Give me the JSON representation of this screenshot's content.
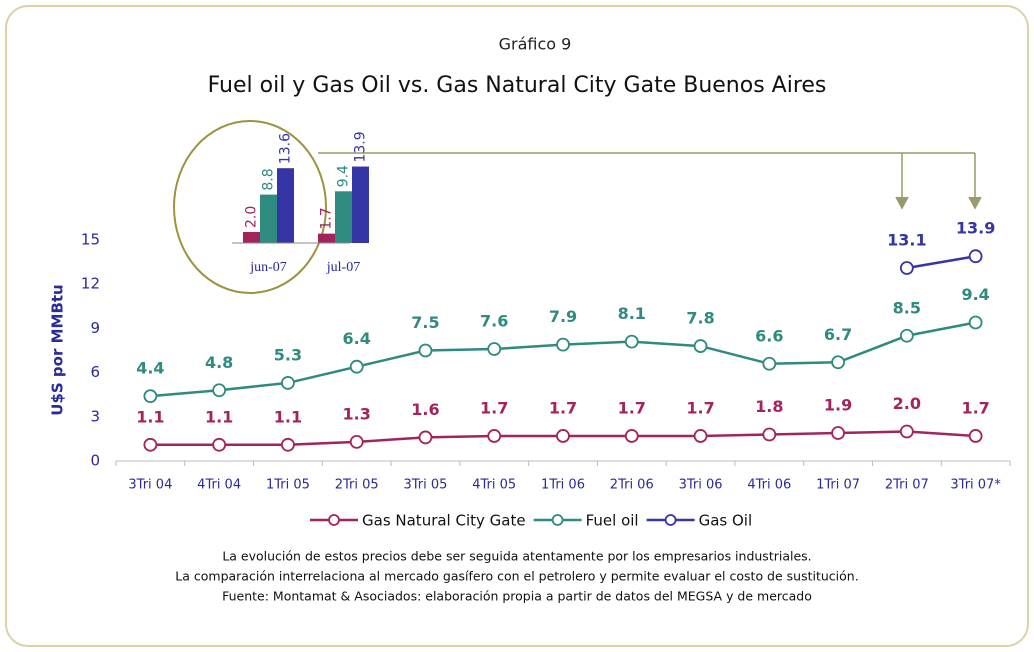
{
  "chart_data": [
    {
      "type": "line",
      "label": "Gráfico 9",
      "title": "Fuel oil y Gas Oil vs. Gas Natural City Gate Buenos Aires",
      "ylabel": "U$S por MMBtu",
      "categories": [
        "3Tri 04",
        "4Tri 04",
        "1Tri 05",
        "2Tri 05",
        "3Tri 05",
        "4Tri 05",
        "1Tri 06",
        "2Tri 06",
        "3Tri 06",
        "4Tri 06",
        "1Tri 07",
        "2Tri 07",
        "3Tri 07*"
      ],
      "series": [
        {
          "name": "Gas Natural City Gate",
          "color": "#a3245c",
          "values": [
            1.1,
            1.1,
            1.1,
            1.3,
            1.6,
            1.7,
            1.7,
            1.7,
            1.7,
            1.8,
            1.9,
            2.0,
            1.7
          ],
          "value_labels": [
            "1.1",
            "1.1",
            "1.1",
            "1.3",
            "1.6",
            "1.7",
            "1.7",
            "1.7",
            "1.7",
            "1.8",
            "1.9",
            "2.0",
            "1.7"
          ]
        },
        {
          "name": "Fuel oil",
          "color": "#2f8a80",
          "values": [
            4.4,
            4.8,
            5.3,
            6.4,
            7.5,
            7.6,
            7.9,
            8.1,
            7.8,
            6.6,
            6.7,
            8.5,
            9.4
          ],
          "value_labels": [
            "4.4",
            "4.8",
            "5.3",
            "6.4",
            "7.5",
            "7.6",
            "7.9",
            "8.1",
            "7.8",
            "6.6",
            "6.7",
            "8.5",
            "9.4"
          ]
        },
        {
          "name": "Gas Oil",
          "color": "#3535a5",
          "values": [
            null,
            null,
            null,
            null,
            null,
            null,
            null,
            null,
            null,
            null,
            null,
            13.1,
            13.9
          ],
          "value_labels": [
            null,
            null,
            null,
            null,
            null,
            null,
            null,
            null,
            null,
            null,
            null,
            "13.1",
            "13.9"
          ]
        }
      ],
      "ylim": [
        0,
        15
      ],
      "yticks": [
        0,
        3,
        6,
        9,
        12,
        15
      ],
      "grid": false,
      "notes": [
        "La evolución de estos precios debe ser seguida atentamente por los empresarios industriales.",
        "La comparación interrelaciona al mercado gasífero con el petrolero y permite evaluar el costo de sustitución.",
        "Fuente: Montamat & Asociados: elaboración propia a partir de datos del MEGSA y de mercado"
      ]
    },
    {
      "type": "bar",
      "categories": [
        "jun-07",
        "jul-07"
      ],
      "series": [
        {
          "color": "#a3245c",
          "values": [
            2.0,
            1.7
          ],
          "value_labels": [
            "2.0",
            "1.7"
          ]
        },
        {
          "color": "#2f8a80",
          "values": [
            8.8,
            9.4
          ],
          "value_labels": [
            "8.8",
            "9.4"
          ]
        },
        {
          "color": "#3535a5",
          "values": [
            13.6,
            13.9
          ],
          "value_labels": [
            "13.6",
            "13.9"
          ]
        }
      ],
      "ylim": [
        0,
        14
      ]
    }
  ]
}
